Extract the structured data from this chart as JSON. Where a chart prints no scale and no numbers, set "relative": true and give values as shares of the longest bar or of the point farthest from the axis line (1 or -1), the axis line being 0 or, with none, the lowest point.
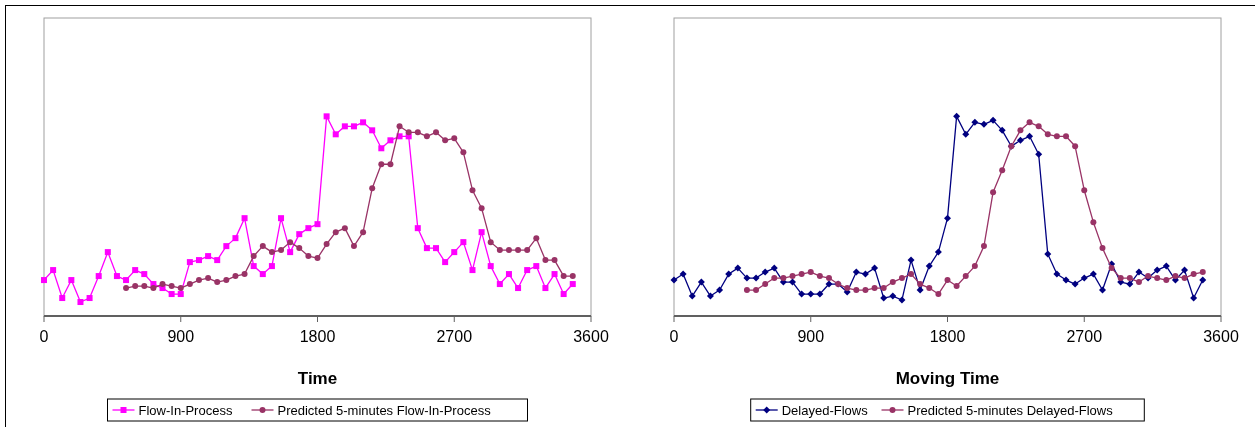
{
  "chart_data": [
    {
      "type": "line",
      "xlabel": "Time",
      "relative": true,
      "xlim": [
        0,
        3600
      ],
      "xticks": [
        0,
        900,
        1800,
        2700,
        3600
      ],
      "legend": "bottom",
      "grid": false,
      "line_style": "solid",
      "series": [
        {
          "name": "Flow-In-Process",
          "color": "#ff00ff",
          "marker": "square",
          "x": [
            0,
            60,
            120,
            180,
            240,
            300,
            360,
            420,
            480,
            540,
            600,
            660,
            720,
            780,
            840,
            900,
            960,
            1020,
            1080,
            1140,
            1200,
            1260,
            1320,
            1380,
            1440,
            1500,
            1560,
            1620,
            1680,
            1740,
            1800,
            1860,
            1920,
            1980,
            2040,
            2100,
            2160,
            2220,
            2280,
            2340,
            2400,
            2460,
            2520,
            2580,
            2640,
            2700,
            2760,
            2820,
            2880,
            2940,
            3000,
            3060,
            3120,
            3180,
            3240,
            3300,
            3360,
            3420,
            3480
          ],
          "values": [
            0.18,
            0.23,
            0.09,
            0.18,
            0.07,
            0.09,
            0.2,
            0.32,
            0.2,
            0.18,
            0.23,
            0.21,
            0.16,
            0.14,
            0.11,
            0.11,
            0.27,
            0.28,
            0.3,
            0.28,
            0.35,
            0.39,
            0.49,
            0.25,
            0.21,
            0.25,
            0.49,
            0.32,
            0.41,
            0.44,
            0.46,
            1.0,
            0.91,
            0.95,
            0.95,
            0.97,
            0.93,
            0.84,
            0.88,
            0.9,
            0.9,
            0.44,
            0.34,
            0.34,
            0.27,
            0.32,
            0.37,
            0.23,
            0.42,
            0.25,
            0.16,
            0.21,
            0.14,
            0.23,
            0.25,
            0.14,
            0.21,
            0.11,
            0.16
          ]
        },
        {
          "name": "Predicted 5-minutes Flow-In-Process",
          "color": "#993366",
          "marker": "circle",
          "x": [
            540,
            600,
            660,
            720,
            780,
            840,
            900,
            960,
            1020,
            1080,
            1140,
            1200,
            1260,
            1320,
            1380,
            1440,
            1500,
            1560,
            1620,
            1680,
            1740,
            1800,
            1860,
            1920,
            1980,
            2040,
            2100,
            2160,
            2220,
            2280,
            2340,
            2400,
            2460,
            2520,
            2580,
            2640,
            2700,
            2760,
            2820,
            2880,
            2940,
            3000,
            3060,
            3120,
            3180,
            3240,
            3300,
            3360,
            3420,
            3480
          ],
          "values": [
            0.14,
            0.15,
            0.15,
            0.14,
            0.16,
            0.15,
            0.14,
            0.16,
            0.18,
            0.19,
            0.17,
            0.18,
            0.2,
            0.21,
            0.3,
            0.35,
            0.32,
            0.33,
            0.37,
            0.34,
            0.3,
            0.29,
            0.36,
            0.42,
            0.44,
            0.35,
            0.42,
            0.64,
            0.76,
            0.76,
            0.95,
            0.92,
            0.92,
            0.9,
            0.92,
            0.88,
            0.89,
            0.82,
            0.63,
            0.54,
            0.37,
            0.33,
            0.33,
            0.33,
            0.33,
            0.39,
            0.28,
            0.28,
            0.2,
            0.2
          ]
        }
      ]
    },
    {
      "type": "line",
      "xlabel": "Moving Time",
      "relative": true,
      "xlim": [
        0,
        3600
      ],
      "xticks": [
        0,
        900,
        1800,
        2700,
        3600
      ],
      "legend": "bottom",
      "grid": false,
      "line_style": "solid",
      "series": [
        {
          "name": "Delayed-Flows",
          "color": "#000080",
          "marker": "diamond",
          "x": [
            0,
            60,
            120,
            180,
            240,
            300,
            360,
            420,
            480,
            540,
            600,
            660,
            720,
            780,
            840,
            900,
            960,
            1020,
            1080,
            1140,
            1200,
            1260,
            1320,
            1380,
            1440,
            1500,
            1560,
            1620,
            1680,
            1740,
            1800,
            1860,
            1920,
            1980,
            2040,
            2100,
            2160,
            2220,
            2280,
            2340,
            2400,
            2460,
            2520,
            2580,
            2640,
            2700,
            2760,
            2820,
            2880,
            2940,
            3000,
            3060,
            3120,
            3180,
            3240,
            3300,
            3360,
            3420,
            3480
          ],
          "values": [
            0.18,
            0.21,
            0.1,
            0.17,
            0.1,
            0.13,
            0.21,
            0.24,
            0.19,
            0.19,
            0.22,
            0.24,
            0.17,
            0.17,
            0.11,
            0.11,
            0.11,
            0.16,
            0.16,
            0.12,
            0.22,
            0.21,
            0.24,
            0.09,
            0.1,
            0.08,
            0.28,
            0.13,
            0.25,
            0.32,
            0.49,
            1.0,
            0.91,
            0.97,
            0.96,
            0.98,
            0.93,
            0.85,
            0.88,
            0.9,
            0.81,
            0.31,
            0.21,
            0.18,
            0.16,
            0.19,
            0.21,
            0.13,
            0.26,
            0.17,
            0.16,
            0.22,
            0.19,
            0.23,
            0.25,
            0.18,
            0.23,
            0.09,
            0.18
          ]
        },
        {
          "name": "Predicted 5-minutes Delayed-Flows",
          "color": "#993366",
          "marker": "circle",
          "x": [
            480,
            540,
            600,
            660,
            720,
            780,
            840,
            900,
            960,
            1020,
            1080,
            1140,
            1200,
            1260,
            1320,
            1380,
            1440,
            1500,
            1560,
            1620,
            1680,
            1740,
            1800,
            1860,
            1920,
            1980,
            2040,
            2100,
            2160,
            2220,
            2280,
            2340,
            2400,
            2460,
            2520,
            2580,
            2640,
            2700,
            2760,
            2820,
            2880,
            2940,
            3000,
            3060,
            3120,
            3180,
            3240,
            3300,
            3360,
            3420,
            3480
          ],
          "values": [
            0.13,
            0.13,
            0.16,
            0.19,
            0.19,
            0.2,
            0.21,
            0.22,
            0.2,
            0.19,
            0.16,
            0.14,
            0.13,
            0.13,
            0.14,
            0.14,
            0.17,
            0.19,
            0.21,
            0.16,
            0.14,
            0.11,
            0.18,
            0.15,
            0.2,
            0.25,
            0.35,
            0.62,
            0.73,
            0.85,
            0.93,
            0.97,
            0.95,
            0.91,
            0.9,
            0.9,
            0.85,
            0.63,
            0.47,
            0.34,
            0.24,
            0.19,
            0.19,
            0.17,
            0.2,
            0.19,
            0.18,
            0.2,
            0.19,
            0.21,
            0.22
          ]
        }
      ]
    }
  ]
}
